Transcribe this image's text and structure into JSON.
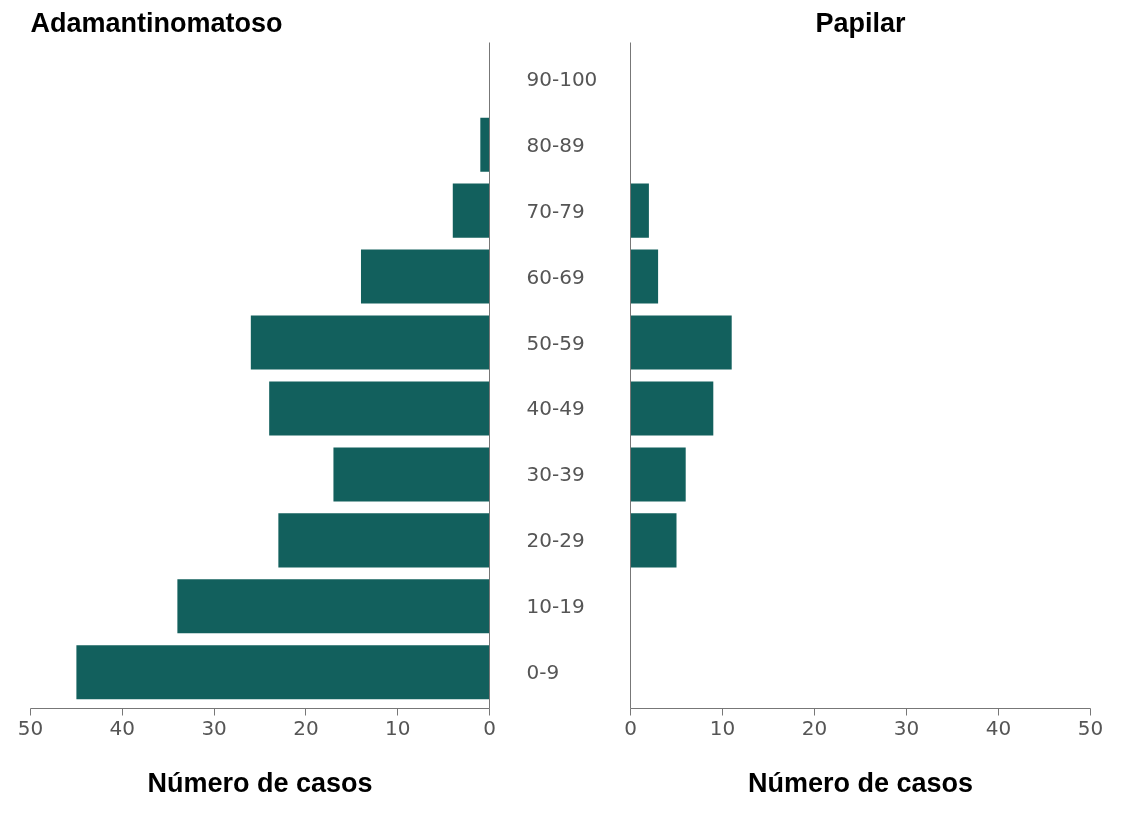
{
  "chart_data": [
    {
      "type": "bar",
      "orientation": "horizontal",
      "title": "Adamantinomatoso",
      "xlabel": "Número de casos",
      "categories": [
        "90-100",
        "80-89",
        "70-79",
        "60-69",
        "50-59",
        "40-49",
        "30-39",
        "20-29",
        "10-19",
        "0-9"
      ],
      "values": [
        0,
        1,
        4,
        14,
        26,
        24,
        17,
        23,
        34,
        45
      ],
      "color": "#12605d",
      "xlim": [
        50,
        0
      ],
      "xticks": [
        50,
        40,
        30,
        20,
        10,
        0
      ],
      "grid": false
    },
    {
      "type": "bar",
      "orientation": "horizontal",
      "title": "Papilar",
      "xlabel": "Número de casos",
      "categories": [
        null,
        null,
        null,
        null,
        null,
        null,
        null,
        null,
        null,
        null
      ],
      "values": [
        0,
        0,
        2,
        3,
        11,
        9,
        6,
        5,
        0,
        0
      ],
      "color": "#12605d",
      "xlim": [
        0,
        50
      ],
      "xticks": [
        0,
        10,
        20,
        30,
        40,
        50
      ],
      "grid": false,
      "tick_labels": "x"
    }
  ]
}
